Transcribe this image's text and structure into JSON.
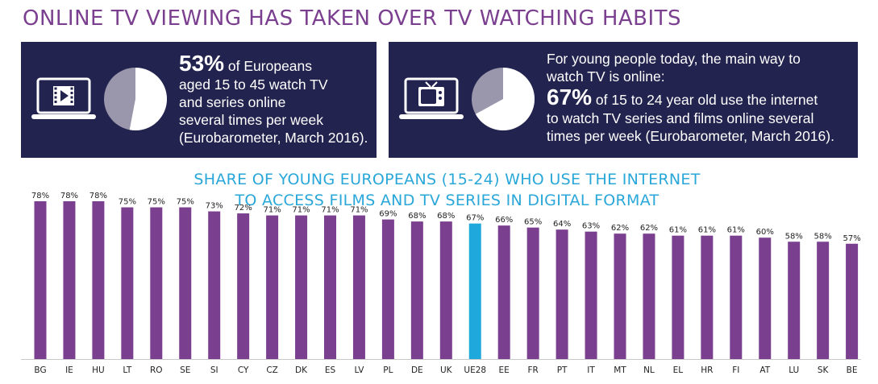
{
  "header": {
    "title": "ONLINE TV VIEWING HAS TAKEN OVER TV WATCHING HABITS"
  },
  "panels": {
    "left": {
      "icon": "laptop-video-icon",
      "pie_fraction": 0.53,
      "big": "53%",
      "text_1": " of Europeans",
      "text_2": "aged 15 to 45 watch TV",
      "text_3": "and series online",
      "text_4": "several times per week",
      "source": "(Eurobarometer, March 2016)."
    },
    "right": {
      "icon": "laptop-tv-icon",
      "pie_fraction": 0.67,
      "intro_1": "For young people today, the main way to",
      "intro_2": "watch TV is online:",
      "big": "67%",
      "text_1": " of 15 to 24 year old use the internet",
      "text_2": "to watch TV series and films online several",
      "text_3": "times per week",
      "source": " (Eurobarometer, March 2016)."
    }
  },
  "colors": {
    "bar": "#7b3f8f",
    "highlight": "#1fa8dc",
    "panel_bg": "#23234f",
    "pie_fill": "#ffffff",
    "pie_rest": "#9a96ab",
    "title": "#7b3f8f",
    "chart_title": "#2aa7d9"
  },
  "chart_data": {
    "type": "bar",
    "title_line_1": "SHARE OF YOUNG EUROPEANS (15-24) WHO USE THE INTERNET",
    "title_line_2": "TO ACCESS FILMS AND TV SERIES IN DIGITAL FORMAT",
    "categories": [
      "BG",
      "IE",
      "HU",
      "LT",
      "RO",
      "SE",
      "SI",
      "CY",
      "CZ",
      "DK",
      "ES",
      "LV",
      "PL",
      "DE",
      "UK",
      "UE28",
      "EE",
      "FR",
      "PT",
      "IT",
      "MT",
      "NL",
      "EL",
      "HR",
      "FI",
      "AT",
      "LU",
      "SK",
      "BE"
    ],
    "values": [
      78,
      78,
      78,
      75,
      75,
      75,
      73,
      72,
      71,
      71,
      71,
      71,
      69,
      68,
      68,
      67,
      66,
      65,
      64,
      63,
      62,
      62,
      61,
      61,
      61,
      60,
      58,
      58,
      57
    ],
    "value_labels": [
      "78%",
      "78%",
      "78%",
      "75%",
      "75%",
      "75%",
      "73%",
      "72%",
      "71%",
      "71%",
      "71%",
      "71%",
      "69%",
      "68%",
      "68%",
      "67%",
      "66%",
      "65%",
      "64%",
      "63%",
      "62%",
      "62%",
      "61%",
      "61%",
      "61%",
      "60%",
      "58%",
      "58%",
      "57%"
    ],
    "highlight_category": "UE28",
    "ylim": [
      0,
      78
    ],
    "xlabel": "",
    "ylabel": "",
    "grid": false,
    "legend": "none"
  }
}
